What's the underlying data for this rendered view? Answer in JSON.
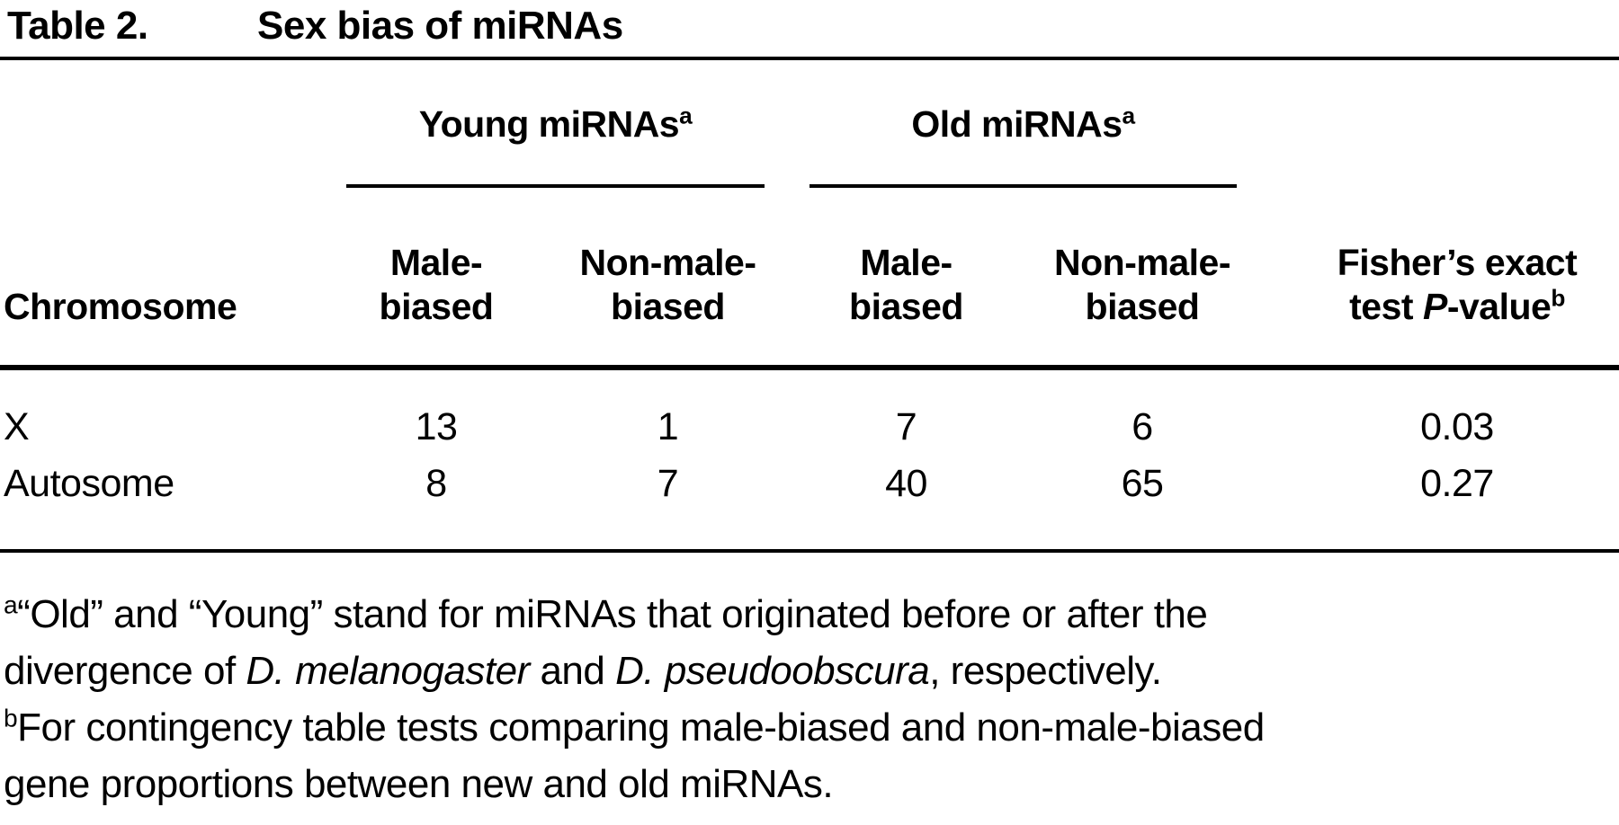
{
  "title": {
    "label": "Table 2.",
    "text": "Sex bias of miRNAs"
  },
  "table": {
    "groups": [
      {
        "label": "Young miRNAs",
        "sup": "a"
      },
      {
        "label": "Old miRNAs",
        "sup": "a"
      }
    ],
    "columns": {
      "chromosome": "Chromosome",
      "male_line1": "Male-",
      "male_line2": "biased",
      "nonmale_line1": "Non-male-",
      "nonmale_line2": "biased",
      "fisher_line1": "Fisher’s exact",
      "fisher_line2_pre": "test ",
      "fisher_line2_italic": "P",
      "fisher_line2_post": "-value",
      "fisher_sup": "b"
    },
    "rows": [
      {
        "chromosome": "X",
        "young_male": "13",
        "young_nonmale": "1",
        "old_male": "7",
        "old_nonmale": "6",
        "p_value": "0.03"
      },
      {
        "chromosome": "Autosome",
        "young_male": "8",
        "young_nonmale": "7",
        "old_male": "40",
        "old_nonmale": "65",
        "p_value": "0.27"
      }
    ]
  },
  "footnotes": {
    "a": {
      "marker": "a",
      "line1": "“Old” and “Young” stand for miRNAs that originated before or after the",
      "line2_pre": "divergence of ",
      "line2_italic1": "D. melanogaster",
      "line2_mid": " and ",
      "line2_italic2": "D. pseudoobscura",
      "line2_end": ", respectively."
    },
    "b": {
      "marker": "b",
      "line1": "For contingency table tests comparing male-biased and non-male-biased",
      "line2": "gene proportions between new and old miRNAs."
    }
  },
  "colors": {
    "background": "#ffffff",
    "text": "#000000",
    "rule": "#000000"
  }
}
